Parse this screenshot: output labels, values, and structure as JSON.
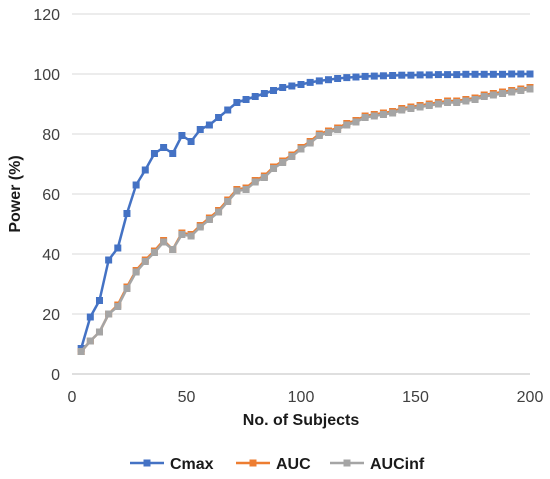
{
  "chart_data": {
    "type": "line",
    "title": "",
    "xlabel": "No. of Subjects",
    "ylabel": "Power (%)",
    "xlim": [
      0,
      200
    ],
    "ylim": [
      0,
      120
    ],
    "x_ticks": [
      0,
      50,
      100,
      150,
      200
    ],
    "y_ticks": [
      0,
      20,
      40,
      60,
      80,
      100,
      120
    ],
    "grid": "horizontal",
    "legend_position": "bottom",
    "series": [
      {
        "name": "Cmax",
        "color": "#4472C4",
        "marker": "square",
        "x": [
          4,
          8,
          12,
          16,
          20,
          24,
          28,
          32,
          36,
          40,
          44,
          48,
          52,
          56,
          60,
          64,
          68,
          72,
          76,
          80,
          84,
          88,
          92,
          96,
          100,
          104,
          108,
          112,
          116,
          120,
          124,
          128,
          132,
          136,
          140,
          144,
          148,
          152,
          156,
          160,
          164,
          168,
          172,
          176,
          180,
          184,
          188,
          192,
          196,
          200
        ],
        "y": [
          8.5,
          19,
          24.5,
          38,
          42,
          53.5,
          63,
          68,
          73.5,
          75.5,
          73.5,
          79.5,
          77.5,
          81.5,
          83,
          85.5,
          88,
          90.5,
          91.5,
          92.5,
          93.5,
          94.5,
          95.5,
          96,
          96.5,
          97.2,
          97.7,
          98.1,
          98.5,
          98.8,
          99,
          99.2,
          99.3,
          99.4,
          99.5,
          99.6,
          99.6,
          99.7,
          99.7,
          99.8,
          99.8,
          99.8,
          99.9,
          99.9,
          99.9,
          99.9,
          99.9,
          100,
          100,
          100
        ]
      },
      {
        "name": "AUC",
        "color": "#ED7D31",
        "marker": "square",
        "x": [
          4,
          8,
          12,
          16,
          20,
          24,
          28,
          32,
          36,
          40,
          44,
          48,
          52,
          56,
          60,
          64,
          68,
          72,
          76,
          80,
          84,
          88,
          92,
          96,
          100,
          104,
          108,
          112,
          116,
          120,
          124,
          128,
          132,
          136,
          140,
          144,
          148,
          152,
          156,
          160,
          164,
          168,
          172,
          176,
          180,
          184,
          188,
          192,
          196,
          200
        ],
        "y": [
          7.5,
          11,
          14,
          20,
          23,
          29,
          34.5,
          38,
          41,
          44.5,
          41.5,
          47,
          46.5,
          49.5,
          52,
          54.5,
          58,
          61.5,
          62,
          64.5,
          66,
          69,
          71,
          73,
          75.5,
          77.5,
          80,
          81,
          82,
          83.5,
          84.5,
          86,
          86.5,
          87,
          87.5,
          88.5,
          89,
          89.5,
          90,
          90.5,
          91,
          91,
          91.5,
          92,
          93,
          93.5,
          94,
          94.5,
          95,
          95.5
        ]
      },
      {
        "name": "AUCinf",
        "color": "#A5A5A5",
        "marker": "square",
        "x": [
          4,
          8,
          12,
          16,
          20,
          24,
          28,
          32,
          36,
          40,
          44,
          48,
          52,
          56,
          60,
          64,
          68,
          72,
          76,
          80,
          84,
          88,
          92,
          96,
          100,
          104,
          108,
          112,
          116,
          120,
          124,
          128,
          132,
          136,
          140,
          144,
          148,
          152,
          156,
          160,
          164,
          168,
          172,
          176,
          180,
          184,
          188,
          192,
          196,
          200
        ],
        "y": [
          7.5,
          11,
          14,
          20,
          22.5,
          28.5,
          34,
          37.5,
          40.5,
          44,
          41.5,
          46.5,
          46,
          49,
          51.5,
          54,
          57.5,
          61,
          61.5,
          64,
          65.5,
          68.5,
          70.5,
          72.5,
          75,
          77,
          79.5,
          80.5,
          81.5,
          83,
          84,
          85.5,
          86,
          86.5,
          87,
          88,
          88.5,
          89,
          89.5,
          90,
          90.5,
          90.5,
          91,
          91.5,
          92.5,
          93,
          93.5,
          94,
          94.5,
          95
        ]
      }
    ]
  }
}
